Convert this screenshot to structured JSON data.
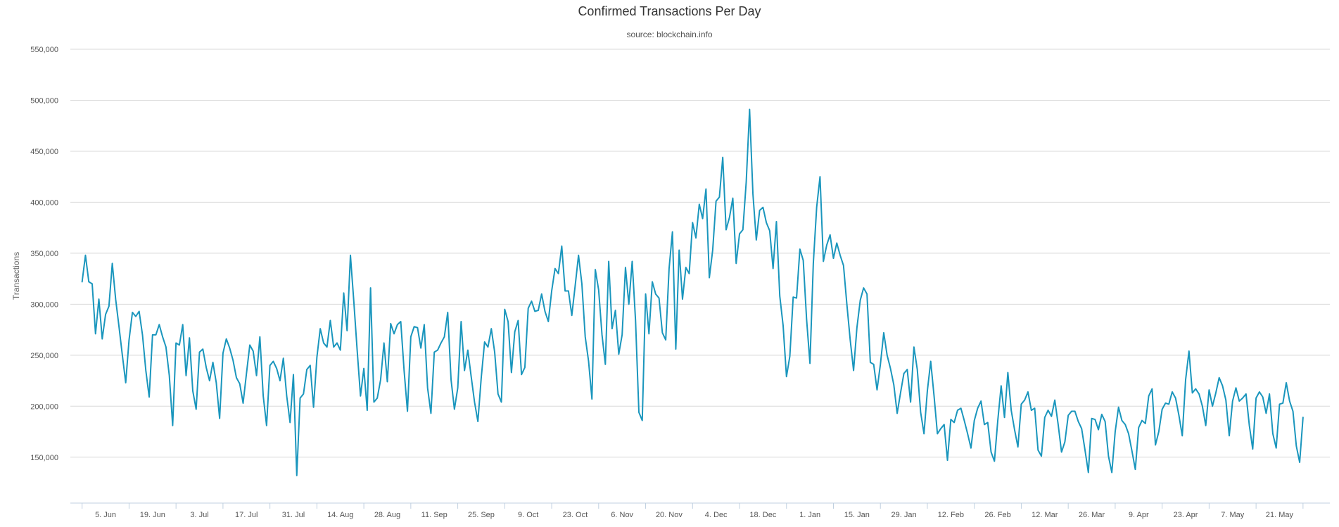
{
  "chart_data": {
    "type": "line",
    "title": "Confirmed Transactions Per Day",
    "subtitle": "source: blockchain.info",
    "ylabel": "Transactions",
    "xlabel": "",
    "ylim": [
      105000,
      550000
    ],
    "yticks": [
      {
        "value": 150000,
        "label": "150,000"
      },
      {
        "value": 200000,
        "label": "200,000"
      },
      {
        "value": 250000,
        "label": "250,000"
      },
      {
        "value": 300000,
        "label": "300,000"
      },
      {
        "value": 350000,
        "label": "350,000"
      },
      {
        "value": 400000,
        "label": "400,000"
      },
      {
        "value": 450000,
        "label": "450,000"
      },
      {
        "value": 500000,
        "label": "500,000"
      },
      {
        "value": 550000,
        "label": "550,000"
      }
    ],
    "xticks": [
      {
        "day": 7,
        "label": "5. Jun"
      },
      {
        "day": 21,
        "label": "19. Jun"
      },
      {
        "day": 35,
        "label": "3. Jul"
      },
      {
        "day": 49,
        "label": "17. Jul"
      },
      {
        "day": 63,
        "label": "31. Jul"
      },
      {
        "day": 77,
        "label": "14. Aug"
      },
      {
        "day": 91,
        "label": "28. Aug"
      },
      {
        "day": 105,
        "label": "11. Sep"
      },
      {
        "day": 119,
        "label": "25. Sep"
      },
      {
        "day": 133,
        "label": "9. Oct"
      },
      {
        "day": 147,
        "label": "23. Oct"
      },
      {
        "day": 161,
        "label": "6. Nov"
      },
      {
        "day": 175,
        "label": "20. Nov"
      },
      {
        "day": 189,
        "label": "4. Dec"
      },
      {
        "day": 203,
        "label": "18. Dec"
      },
      {
        "day": 217,
        "label": "1. Jan"
      },
      {
        "day": 231,
        "label": "15. Jan"
      },
      {
        "day": 245,
        "label": "29. Jan"
      },
      {
        "day": 259,
        "label": "12. Feb"
      },
      {
        "day": 273,
        "label": "26. Feb"
      },
      {
        "day": 287,
        "label": "12. Mar"
      },
      {
        "day": 301,
        "label": "26. Mar"
      },
      {
        "day": 315,
        "label": "9. Apr"
      },
      {
        "day": 329,
        "label": "23. Apr"
      },
      {
        "day": 343,
        "label": "7. May"
      },
      {
        "day": 357,
        "label": "21. May"
      }
    ],
    "xlim": [
      -3.5,
      372
    ],
    "grid": true,
    "legend": "none",
    "series": [
      {
        "color": "#1a96bd",
        "values": [
          322000,
          348000,
          322000,
          320000,
          271000,
          305000,
          266000,
          290000,
          298000,
          340000,
          305000,
          278000,
          250000,
          223000,
          265000,
          292000,
          288000,
          293000,
          270000,
          235000,
          209000,
          270000,
          270000,
          280000,
          268000,
          258000,
          230000,
          181000,
          262000,
          260000,
          280000,
          230000,
          267000,
          215000,
          197000,
          253000,
          256000,
          238000,
          225000,
          243000,
          223000,
          188000,
          252000,
          266000,
          257000,
          245000,
          228000,
          222000,
          203000,
          232000,
          260000,
          254000,
          230000,
          268000,
          210000,
          181000,
          240000,
          244000,
          237000,
          225000,
          247000,
          210000,
          184000,
          231000,
          132000,
          208000,
          212000,
          236000,
          240000,
          199000,
          248000,
          276000,
          262000,
          258000,
          284000,
          258000,
          262000,
          255000,
          311000,
          274000,
          348000,
          303000,
          255000,
          210000,
          237000,
          196000,
          316000,
          204000,
          208000,
          226000,
          262000,
          224000,
          281000,
          271000,
          280000,
          283000,
          235000,
          195000,
          268000,
          278000,
          277000,
          257000,
          280000,
          218000,
          193000,
          253000,
          255000,
          262000,
          268000,
          292000,
          226000,
          197000,
          218000,
          283000,
          235000,
          255000,
          229000,
          204000,
          185000,
          228000,
          263000,
          258000,
          276000,
          253000,
          212000,
          204000,
          295000,
          283000,
          233000,
          273000,
          284000,
          231000,
          238000,
          296000,
          303000,
          293000,
          294000,
          310000,
          293000,
          283000,
          313000,
          335000,
          330000,
          357000,
          313000,
          313000,
          289000,
          318000,
          348000,
          320000,
          268000,
          244000,
          207000,
          334000,
          314000,
          270000,
          241000,
          342000,
          276000,
          294000,
          251000,
          270000,
          336000,
          300000,
          342000,
          284000,
          194000,
          186000,
          310000,
          271000,
          322000,
          310000,
          306000,
          272000,
          265000,
          335000,
          371000,
          256000,
          353000,
          305000,
          336000,
          330000,
          380000,
          365000,
          398000,
          384000,
          413000,
          326000,
          353000,
          401000,
          405000,
          444000,
          373000,
          385000,
          404000,
          340000,
          369000,
          373000,
          420000,
          491000,
          408000,
          363000,
          392000,
          395000,
          380000,
          372000,
          335000,
          381000,
          308000,
          279000,
          229000,
          249000,
          307000,
          306000,
          354000,
          343000,
          285000,
          242000,
          340000,
          395000,
          425000,
          342000,
          358000,
          368000,
          345000,
          360000,
          348000,
          338000,
          300000,
          265000,
          235000,
          277000,
          304000,
          316000,
          310000,
          243000,
          241000,
          216000,
          241000,
          272000,
          250000,
          237000,
          221000,
          193000,
          213000,
          232000,
          236000,
          204000,
          258000,
          236000,
          194000,
          173000,
          215000,
          244000,
          210000,
          173000,
          178000,
          182000,
          147000,
          187000,
          184000,
          196000,
          198000,
          186000,
          173000,
          159000,
          186000,
          198000,
          205000,
          182000,
          184000,
          155000,
          146000,
          186000,
          220000,
          189000,
          233000,
          196000,
          177000,
          160000,
          202000,
          206000,
          214000,
          196000,
          198000,
          157000,
          151000,
          189000,
          196000,
          190000,
          206000,
          182000,
          155000,
          165000,
          191000,
          195000,
          195000,
          185000,
          178000,
          157000,
          135000,
          188000,
          187000,
          177000,
          192000,
          185000,
          151000,
          135000,
          175000,
          199000,
          186000,
          182000,
          173000,
          156000,
          138000,
          179000,
          186000,
          183000,
          210000,
          217000,
          162000,
          175000,
          197000,
          203000,
          202000,
          214000,
          208000,
          191000,
          171000,
          226000,
          254000,
          213000,
          217000,
          212000,
          200000,
          181000,
          216000,
          200000,
          213000,
          228000,
          220000,
          206000,
          171000,
          205000,
          218000,
          205000,
          208000,
          212000,
          181000,
          158000,
          208000,
          214000,
          209000,
          193000,
          212000,
          173000,
          159000,
          202000,
          203000,
          223000,
          205000,
          195000,
          161000,
          145000,
          189000
        ]
      }
    ]
  }
}
